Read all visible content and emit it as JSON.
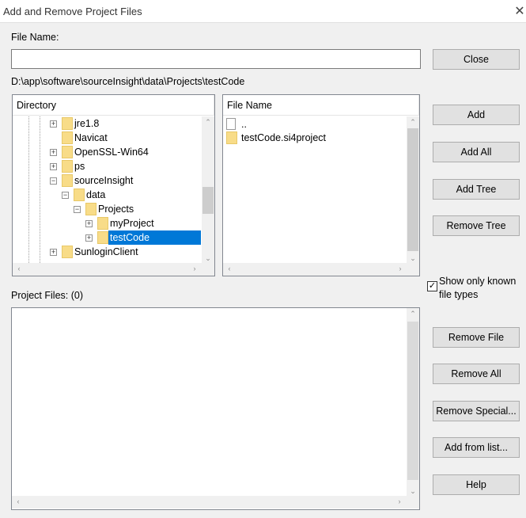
{
  "window": {
    "title": "Add and Remove Project Files",
    "close_icon": "close-icon"
  },
  "file_name": {
    "label": "File Name:",
    "value": ""
  },
  "current_path": "D:\\app\\software\\sourceInsight\\data\\Projects\\testCode",
  "directory": {
    "header": "Directory",
    "items": [
      {
        "label": "jre1.8",
        "level": 0,
        "expander": "+"
      },
      {
        "label": "Navicat",
        "level": 0,
        "expander": ""
      },
      {
        "label": "OpenSSL-Win64",
        "level": 0,
        "expander": "+"
      },
      {
        "label": "ps",
        "level": 0,
        "expander": "+"
      },
      {
        "label": "sourceInsight",
        "level": 0,
        "expander": "-"
      },
      {
        "label": "data",
        "level": 1,
        "expander": "-"
      },
      {
        "label": "Projects",
        "level": 2,
        "expander": "-"
      },
      {
        "label": "myProject",
        "level": 3,
        "expander": "+"
      },
      {
        "label": "testCode",
        "level": 3,
        "expander": "+",
        "selected": true
      },
      {
        "label": "SunloginClient",
        "level": 0,
        "expander": "+"
      }
    ],
    "selection_color": "#0078d7"
  },
  "files": {
    "header": "File Name",
    "items": [
      {
        "label": "..",
        "icon": "file-icon"
      },
      {
        "label": "testCode.si4project",
        "icon": "folder-icon"
      }
    ]
  },
  "show_known": {
    "label": "Show only known file types",
    "checked": true
  },
  "project_files": {
    "label": "Project Files: (0)",
    "items": []
  },
  "buttons": {
    "close": "Close",
    "add": "Add",
    "add_all": "Add All",
    "add_tree": "Add Tree",
    "remove_tree": "Remove Tree",
    "remove_file": "Remove File",
    "remove_all": "Remove All",
    "remove_special": "Remove Special...",
    "add_from_list": "Add from list...",
    "help": "Help"
  }
}
